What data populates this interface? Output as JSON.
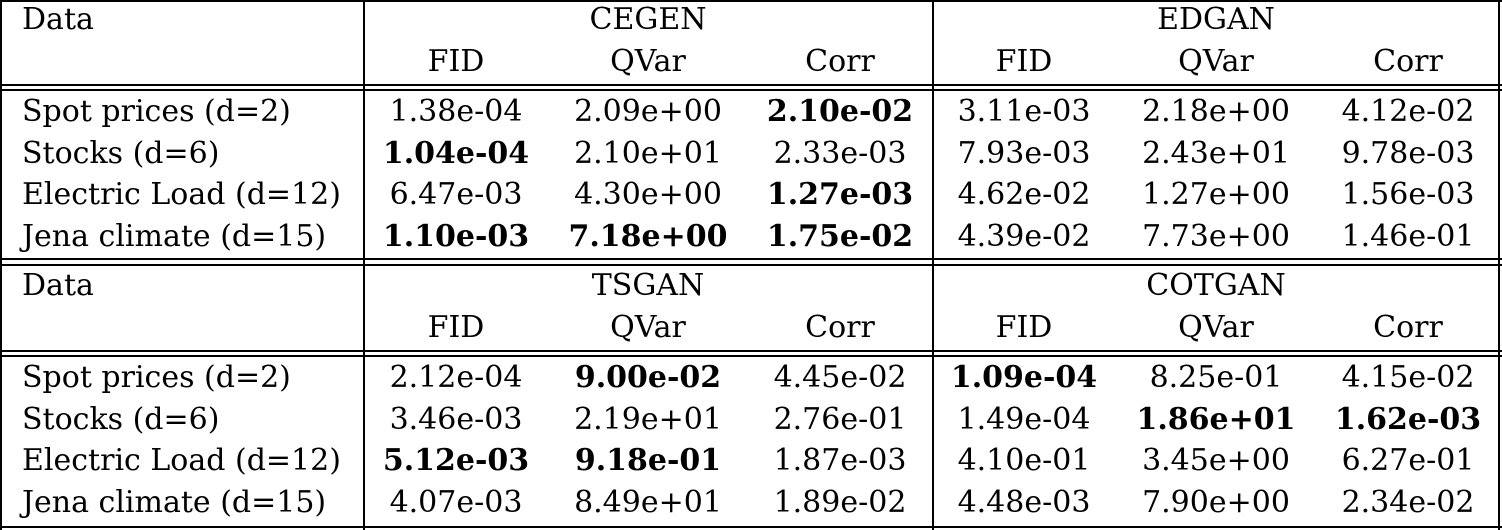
{
  "blocks": [
    {
      "data_label": "Data",
      "models": [
        "CEGEN",
        "EDGAN"
      ],
      "metrics": [
        "FID",
        "QVar",
        "Corr",
        "FID",
        "QVar",
        "Corr"
      ],
      "rows": [
        {
          "label": "Spot prices (d=2)",
          "values": [
            "1.38e-04",
            "2.09e+00",
            "2.10e-02",
            "3.11e-03",
            "2.18e+00",
            "4.12e-02"
          ],
          "bold": [
            false,
            false,
            true,
            false,
            false,
            false
          ]
        },
        {
          "label": "Stocks (d=6)",
          "values": [
            "1.04e-04",
            "2.10e+01",
            "2.33e-03",
            "7.93e-03",
            "2.43e+01",
            "9.78e-03"
          ],
          "bold": [
            true,
            false,
            false,
            false,
            false,
            false
          ]
        },
        {
          "label": "Electric Load (d=12)",
          "values": [
            "6.47e-03",
            "4.30e+00",
            "1.27e-03",
            "4.62e-02",
            "1.27e+00",
            "1.56e-03"
          ],
          "bold": [
            false,
            false,
            true,
            false,
            false,
            false
          ]
        },
        {
          "label": "Jena climate (d=15)",
          "values": [
            "1.10e-03",
            "7.18e+00",
            "1.75e-02",
            "4.39e-02",
            "7.73e+00",
            "1.46e-01"
          ],
          "bold": [
            true,
            true,
            true,
            false,
            false,
            false
          ]
        }
      ]
    },
    {
      "data_label": "Data",
      "models": [
        "TSGAN",
        "COTGAN"
      ],
      "metrics": [
        "FID",
        "QVar",
        "Corr",
        "FID",
        "QVar",
        "Corr"
      ],
      "rows": [
        {
          "label": "Spot prices (d=2)",
          "values": [
            "2.12e-04",
            "9.00e-02",
            "4.45e-02",
            "1.09e-04",
            "8.25e-01",
            "4.15e-02"
          ],
          "bold": [
            false,
            true,
            false,
            true,
            false,
            false
          ]
        },
        {
          "label": "Stocks (d=6)",
          "values": [
            "3.46e-03",
            "2.19e+01",
            "2.76e-01",
            "1.49e-04",
            "1.86e+01",
            "1.62e-03"
          ],
          "bold": [
            false,
            false,
            false,
            false,
            true,
            true
          ]
        },
        {
          "label": "Electric Load (d=12)",
          "values": [
            "5.12e-03",
            "9.18e-01",
            "1.87e-03",
            "4.10e-01",
            "3.45e+00",
            "6.27e-01"
          ],
          "bold": [
            true,
            true,
            false,
            false,
            false,
            false
          ]
        },
        {
          "label": "Jena climate (d=15)",
          "values": [
            "4.07e-03",
            "8.49e+01",
            "1.89e-02",
            "4.48e-03",
            "7.90e+00",
            "2.34e-02"
          ],
          "bold": [
            false,
            false,
            false,
            false,
            false,
            false
          ]
        }
      ]
    }
  ]
}
